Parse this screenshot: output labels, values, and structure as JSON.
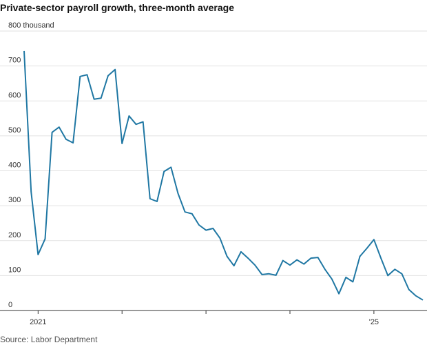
{
  "chart_data": {
    "type": "line",
    "title": "Private-sector payroll growth, three-month average",
    "source": "Source: Labor Department",
    "categories": [
      null,
      null,
      "2021",
      null,
      null,
      null,
      null,
      null,
      null,
      null,
      null,
      null,
      null,
      null,
      null,
      null,
      null,
      null,
      null,
      null,
      null,
      null,
      null,
      null,
      null,
      null,
      null,
      null,
      null,
      null,
      null,
      null,
      null,
      null,
      null,
      null,
      null,
      null,
      null,
      null,
      null,
      null,
      null,
      null,
      null,
      null,
      null,
      null,
      null,
      null,
      "'25",
      null,
      null,
      null,
      null,
      null,
      null,
      null
    ],
    "series": [
      {
        "name": "Private-sector payroll growth",
        "color": "#1f77a3",
        "values": [
          743,
          340,
          160,
          205,
          510,
          525,
          490,
          480,
          670,
          675,
          605,
          608,
          672,
          690,
          478,
          557,
          533,
          540,
          320,
          312,
          398,
          410,
          335,
          282,
          277,
          245,
          230,
          235,
          207,
          155,
          128,
          168,
          150,
          130,
          103,
          105,
          101,
          143,
          130,
          145,
          133,
          150,
          152,
          118,
          90,
          48,
          95,
          82,
          155,
          178,
          203,
          150,
          100,
          118,
          105,
          60,
          42,
          30
        ]
      }
    ],
    "ylim": [
      0,
      800
    ],
    "yticks": [
      0,
      100,
      200,
      300,
      400,
      500,
      600,
      700,
      {
        "value": 800,
        "label": "800 thousand"
      }
    ],
    "grid": true
  }
}
